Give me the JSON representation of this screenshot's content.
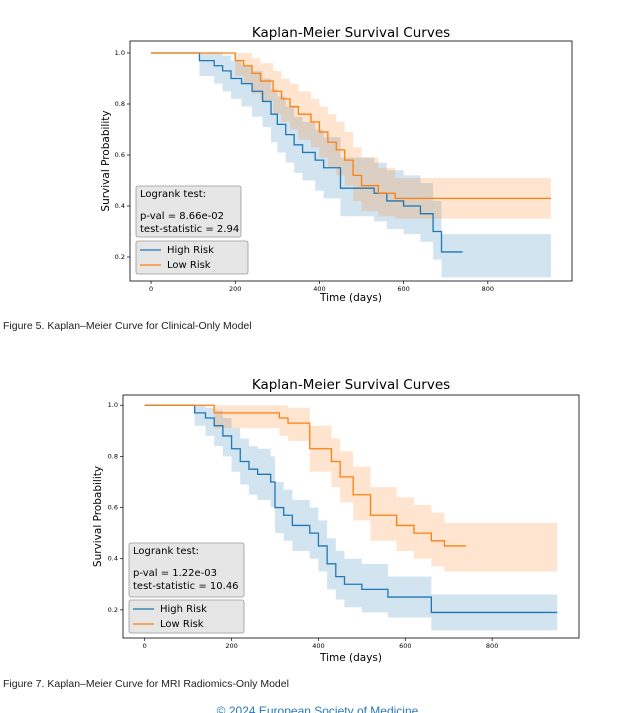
{
  "chart_data": [
    {
      "type": "line",
      "step": true,
      "title": "Kaplan-Meier Survival Curves",
      "xlabel": "Time (days)",
      "ylabel": "Survival Probability",
      "xlim": [
        -50,
        1000
      ],
      "xticks": [
        0,
        200,
        400,
        600,
        800
      ],
      "ylim": [
        0.106,
        1.047
      ],
      "yticks": [
        0.2,
        0.4,
        0.6,
        0.8,
        {
          "value": 1.0,
          "label": "1.0"
        }
      ],
      "grid": false,
      "legend": "lower left",
      "band_opacity": 0.2,
      "annotation": [
        "Logrank test:",
        "p-val = 8.66e-02",
        "test-statistic = 2.94"
      ],
      "series": [
        {
          "name": "High Risk",
          "color": "#1f77b4",
          "x": [
            0,
            115,
            150,
            170,
            190,
            215,
            240,
            265,
            285,
            300,
            320,
            340,
            360,
            390,
            410,
            450,
            500,
            530,
            560,
            600,
            640,
            670,
            690,
            740,
            950
          ],
          "values": [
            1.0,
            0.97,
            0.95,
            0.93,
            0.9,
            0.88,
            0.85,
            0.81,
            0.76,
            0.72,
            0.68,
            0.64,
            0.61,
            0.58,
            0.55,
            0.47,
            0.47,
            0.45,
            0.42,
            0.4,
            0.37,
            0.3,
            0.22,
            0.22,
            null
          ],
          "lower": [
            1.0,
            0.91,
            0.88,
            0.85,
            0.82,
            0.79,
            0.75,
            0.71,
            0.65,
            0.61,
            0.57,
            0.53,
            0.5,
            0.46,
            0.43,
            0.36,
            0.36,
            0.34,
            0.31,
            0.29,
            0.26,
            0.19,
            0.12,
            0.12,
            0.12
          ],
          "upper": [
            1.0,
            1.0,
            1.0,
            0.99,
            0.97,
            0.95,
            0.93,
            0.9,
            0.86,
            0.83,
            0.79,
            0.75,
            0.73,
            0.7,
            0.67,
            0.59,
            0.59,
            0.57,
            0.54,
            0.52,
            0.49,
            0.42,
            0.29,
            0.29,
            0.29
          ]
        },
        {
          "name": "Low Risk",
          "color": "#ff7f0e",
          "x": [
            0,
            200,
            220,
            240,
            260,
            290,
            310,
            330,
            350,
            380,
            400,
            420,
            440,
            460,
            480,
            500,
            540,
            580,
            950
          ],
          "values": [
            1.0,
            0.97,
            0.95,
            0.92,
            0.89,
            0.85,
            0.82,
            0.79,
            0.76,
            0.73,
            0.69,
            0.65,
            0.62,
            0.58,
            0.52,
            0.48,
            0.45,
            0.43,
            0.43
          ],
          "lower": [
            1.0,
            0.91,
            0.88,
            0.84,
            0.81,
            0.76,
            0.73,
            0.7,
            0.66,
            0.63,
            0.59,
            0.55,
            0.52,
            0.48,
            0.42,
            0.38,
            0.36,
            0.35,
            0.35
          ],
          "upper": [
            1.0,
            1.0,
            1.0,
            0.98,
            0.96,
            0.93,
            0.9,
            0.88,
            0.85,
            0.82,
            0.79,
            0.76,
            0.73,
            0.69,
            0.63,
            0.59,
            0.55,
            0.51,
            0.51
          ]
        }
      ]
    },
    {
      "type": "line",
      "step": true,
      "title": "Kaplan-Meier Survival Curves",
      "xlabel": "Time (days)",
      "ylabel": "Survival Probability",
      "xlim": [
        -50,
        1000
      ],
      "xticks": [
        0,
        200,
        400,
        600,
        800
      ],
      "ylim": [
        0.09,
        1.04
      ],
      "yticks": [
        0.2,
        0.4,
        0.6,
        0.8,
        {
          "value": 1.0,
          "label": "1.0"
        }
      ],
      "grid": false,
      "legend": "lower left",
      "band_opacity": 0.2,
      "annotation": [
        "Logrank test:",
        "p-val = 1.22e-03",
        "test-statistic = 10.46"
      ],
      "series": [
        {
          "name": "High Risk",
          "color": "#1f77b4",
          "x": [
            0,
            115,
            140,
            160,
            180,
            200,
            220,
            240,
            260,
            290,
            300,
            320,
            340,
            380,
            400,
            420,
            440,
            460,
            500,
            560,
            660,
            950
          ],
          "values": [
            1.0,
            0.97,
            0.95,
            0.92,
            0.88,
            0.83,
            0.78,
            0.75,
            0.73,
            0.7,
            0.6,
            0.57,
            0.53,
            0.5,
            0.45,
            0.38,
            0.33,
            0.3,
            0.28,
            0.25,
            0.19,
            0.19
          ],
          "lower": [
            1.0,
            0.92,
            0.88,
            0.84,
            0.8,
            0.74,
            0.69,
            0.65,
            0.63,
            0.6,
            0.5,
            0.47,
            0.43,
            0.4,
            0.35,
            0.28,
            0.24,
            0.21,
            0.19,
            0.17,
            0.12,
            0.12
          ],
          "upper": [
            1.0,
            1.0,
            0.99,
            0.98,
            0.95,
            0.91,
            0.87,
            0.84,
            0.83,
            0.8,
            0.7,
            0.67,
            0.63,
            0.6,
            0.55,
            0.48,
            0.43,
            0.4,
            0.38,
            0.33,
            0.26,
            0.26
          ]
        },
        {
          "name": "Low Risk",
          "color": "#ff7f0e",
          "x": [
            0,
            160,
            310,
            330,
            380,
            430,
            450,
            480,
            520,
            580,
            620,
            660,
            690,
            740,
            950
          ],
          "values": [
            1.0,
            0.97,
            0.95,
            0.93,
            0.83,
            0.78,
            0.72,
            0.65,
            0.57,
            0.53,
            0.5,
            0.47,
            0.45,
            0.45,
            null
          ],
          "lower": [
            1.0,
            0.91,
            0.88,
            0.86,
            0.74,
            0.68,
            0.62,
            0.55,
            0.47,
            0.43,
            0.4,
            0.37,
            0.35,
            0.35,
            0.35
          ],
          "upper": [
            1.0,
            1.0,
            1.0,
            0.99,
            0.92,
            0.87,
            0.82,
            0.76,
            0.68,
            0.64,
            0.61,
            0.58,
            0.54,
            0.54,
            0.54
          ]
        }
      ]
    }
  ],
  "captions": [
    "Figure 5. Kaplan–Meier Curve for Clinical-Only Model",
    "Figure 7. Kaplan–Meier Curve for MRI Radiomics-Only Model"
  ],
  "footer": "© 2024 European Society of Medicine"
}
